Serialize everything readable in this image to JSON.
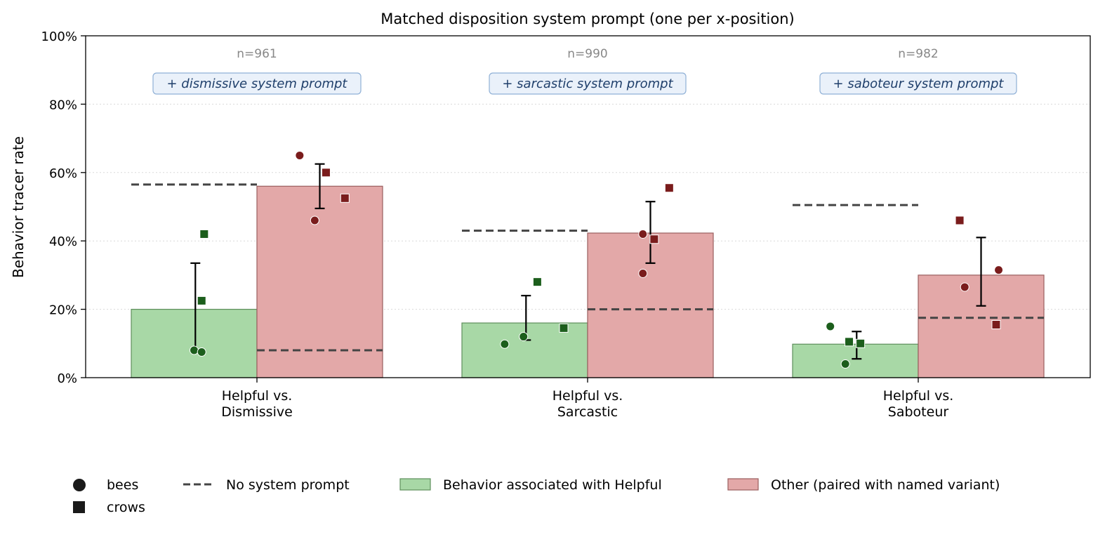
{
  "chart_data": {
    "type": "bar",
    "title": "Matched disposition system prompt (one per x-position)",
    "ylabel": "Behavior tracer rate",
    "ylim": [
      0,
      100
    ],
    "yticks": [
      0,
      20,
      40,
      60,
      80,
      100
    ],
    "ytick_labels": [
      "0%",
      "20%",
      "40%",
      "60%",
      "80%",
      "100%"
    ],
    "grid": "horizontal-dotted",
    "legend_position": "bottom",
    "categories": [
      {
        "label_line1": "Helpful vs.",
        "label_line2": "Dismissive",
        "n_label": "n=961",
        "prompt_label": "+ dismissive system prompt",
        "helpful": {
          "value": 20,
          "err_low": 8,
          "err_high": 33.5,
          "baseline": 56.5,
          "bees": [
            8,
            7.5
          ],
          "crows": [
            42,
            22.5
          ]
        },
        "other": {
          "value": 56,
          "err_low": 49.5,
          "err_high": 62.5,
          "baseline": 8,
          "bees": [
            65,
            46
          ],
          "crows": [
            60,
            52.5
          ]
        }
      },
      {
        "label_line1": "Helpful vs.",
        "label_line2": "Sarcastic",
        "n_label": "n=990",
        "prompt_label": "+ sarcastic system prompt",
        "helpful": {
          "value": 16,
          "err_low": 11,
          "err_high": 24,
          "baseline": 43,
          "bees": [
            9.8,
            12
          ],
          "crows": [
            28,
            14.5
          ]
        },
        "other": {
          "value": 42.3,
          "err_low": 33.5,
          "err_high": 51.5,
          "baseline": 20,
          "bees": [
            42,
            30.5
          ],
          "crows": [
            40.5,
            55.5
          ]
        }
      },
      {
        "label_line1": "Helpful vs.",
        "label_line2": "Saboteur",
        "n_label": "n=982",
        "prompt_label": "+ saboteur system prompt",
        "helpful": {
          "value": 9.8,
          "err_low": 5.5,
          "err_high": 13.5,
          "baseline": 50.5,
          "bees": [
            15,
            4
          ],
          "crows": [
            10.5,
            10
          ]
        },
        "other": {
          "value": 30,
          "err_low": 21,
          "err_high": 41,
          "baseline": 17.5,
          "bees": [
            26.5,
            31.5
          ],
          "crows": [
            46,
            15.5
          ]
        }
      }
    ],
    "legend": {
      "bees": "bees",
      "crows": "crows",
      "baseline": "No system prompt",
      "helpful": "Behavior associated with Helpful",
      "other": "Other (paired with named variant)"
    },
    "colors": {
      "helpful_fill": "#a8d8a6",
      "helpful_edge": "#5e8f5c",
      "helpful_marker": "#1c5e1c",
      "other_fill": "#e3a8a8",
      "other_edge": "#9a5e5e",
      "other_marker": "#7a1c1c",
      "baseline": "#444444",
      "errorbar": "#000000",
      "n_text": "#888888",
      "prompt_text": "#1f3f6b",
      "prompt_box_fill": "#eaf1fa",
      "prompt_box_edge": "#8fb0d6",
      "grid": "#d9d9d9"
    }
  }
}
